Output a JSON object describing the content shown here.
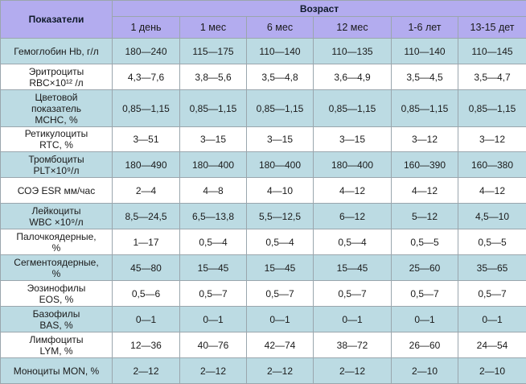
{
  "table": {
    "header_indicators": "Показатели",
    "header_age": "Возраст",
    "age_columns": [
      "1 день",
      "1 мес",
      "6 мес",
      "12 мес",
      "1-6 лет",
      "13-15 дет"
    ],
    "colors": {
      "header": "#b3acef",
      "stripe": "#bcdbe3",
      "white": "#ffffff"
    },
    "rows": [
      {
        "label": "Гемоглобин Hb, г/л",
        "values": [
          "180—240",
          "115—175",
          "110—140",
          "110—135",
          "110—140",
          "110—145"
        ]
      },
      {
        "label": "Эритроциты\nRBC×10¹² /л",
        "values": [
          "4,3—7,6",
          "3,8—5,6",
          "3,5—4,8",
          "3,6—4,9",
          "3,5—4,5",
          "3,5—4,7"
        ]
      },
      {
        "label": "Цветовой\nпоказатель\nMCHC, %",
        "values": [
          "0,85—1,15",
          "0,85—1,15",
          "0,85—1,15",
          "0,85—1,15",
          "0,85—1,15",
          "0,85—1,15"
        ]
      },
      {
        "label": "Ретикулоциты\nRTC, %",
        "values": [
          "3—51",
          "3—15",
          "3—15",
          "3—15",
          "3—12",
          "3—12"
        ]
      },
      {
        "label": "Тромбоциты\nPLT×10⁹/л",
        "values": [
          "180—490",
          "180—400",
          "180—400",
          "180—400",
          "160—390",
          "160—380"
        ]
      },
      {
        "label": "СОЭ ESR мм/час",
        "values": [
          "2—4",
          "4—8",
          "4—10",
          "4—12",
          "4—12",
          "4—12"
        ]
      },
      {
        "label": "Лейкоциты\nWBC ×10⁹/л",
        "values": [
          "8,5—24,5",
          "6,5—13,8",
          "5,5—12,5",
          "6—12",
          "5—12",
          "4,5—10"
        ]
      },
      {
        "label": "Палочкоядерные,\n%",
        "values": [
          "1—17",
          "0,5—4",
          "0,5—4",
          "0,5—4",
          "0,5—5",
          "0,5—5"
        ]
      },
      {
        "label": "Сегментоядерные,\n%",
        "values": [
          "45—80",
          "15—45",
          "15—45",
          "15—45",
          "25—60",
          "35—65"
        ]
      },
      {
        "label": "Эозинофилы\nEOS, %",
        "values": [
          "0,5—6",
          "0,5—7",
          "0,5—7",
          "0,5—7",
          "0,5—7",
          "0,5—7"
        ]
      },
      {
        "label": "Базофилы\nBAS, %",
        "values": [
          "0—1",
          "0—1",
          "0—1",
          "0—1",
          "0—1",
          "0—1"
        ]
      },
      {
        "label": "Лимфоциты\nLYM, %",
        "values": [
          "12—36",
          "40—76",
          "42—74",
          "38—72",
          "26—60",
          "24—54"
        ]
      },
      {
        "label": "Моноциты MON, %",
        "values": [
          "2—12",
          "2—12",
          "2—12",
          "2—12",
          "2—10",
          "2—10"
        ]
      }
    ]
  }
}
